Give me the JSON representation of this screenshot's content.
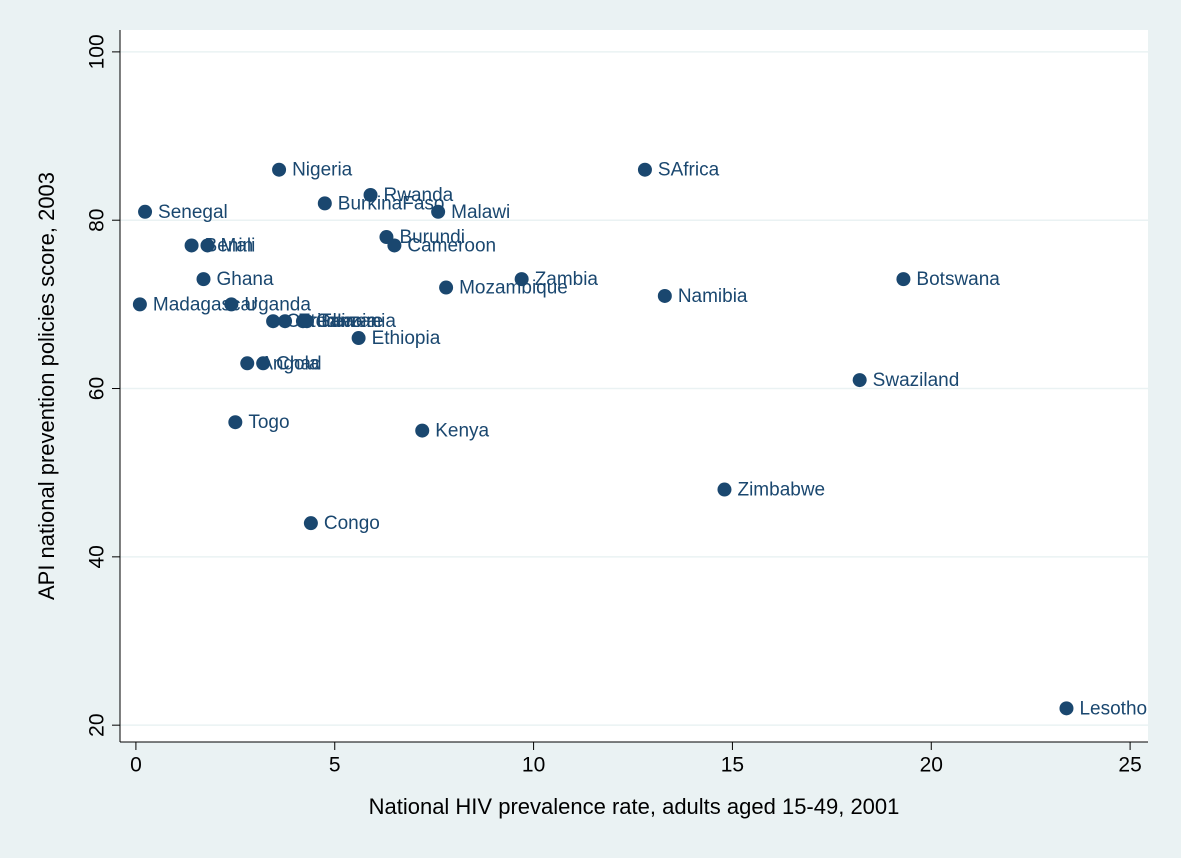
{
  "chart_data": {
    "type": "scatter",
    "x_label": "National HIV prevalence rate, adults aged 15-49, 2001",
    "y_label": "API national prevention policies score, 2003",
    "labels": [
      "Nigeria",
      "Senegal",
      "Benin",
      "Mali",
      "Ghana",
      "Madagascar",
      "Uganda",
      "BurkinaFaso",
      "Rwanda",
      "Malawi",
      "Burundi",
      "Cameroon",
      "Zambia",
      "Mozambique",
      "SAfrica",
      "Namibia",
      "Botswana",
      "Swaziland",
      "Lesotho",
      "Zimbabwe",
      "Kenya",
      "Congo",
      "Ethiopia",
      "Togo",
      "Angola",
      "Chad",
      "CotedIvoire",
      "Eritrea",
      "Guinea",
      "Tanzania"
    ],
    "x": [
      3.6,
      0.23,
      1.4,
      1.8,
      1.7,
      0.1,
      2.4,
      4.75,
      5.9,
      7.6,
      6.3,
      6.5,
      9.7,
      7.8,
      12.8,
      13.3,
      19.3,
      18.2,
      23.4,
      14.8,
      7.2,
      4.4,
      5.6,
      2.5,
      2.8,
      3.2,
      3.45,
      3.75,
      4.2,
      4.3
    ],
    "values": [
      86,
      81,
      77,
      77,
      73,
      70,
      70,
      82,
      83,
      81,
      78,
      77,
      73,
      72,
      86,
      71,
      73,
      61,
      22,
      48,
      55,
      44,
      66,
      56,
      63,
      63,
      68,
      68,
      68,
      68
    ],
    "color": "#1a476f",
    "xlim": [
      -0.4,
      25.45
    ],
    "ylim": [
      18,
      102.6
    ],
    "xticks": [
      0,
      5,
      10,
      15,
      20,
      25
    ],
    "yticks": [
      20,
      40,
      60,
      80,
      100
    ],
    "grid": true
  }
}
